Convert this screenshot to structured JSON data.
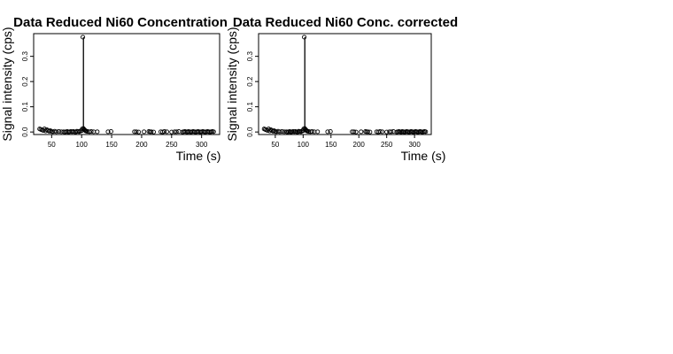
{
  "chart_data": [
    {
      "type": "scatter",
      "title": "Data Reduced Ni60 Concentration",
      "xlabel": "Time (s)",
      "ylabel": "Signal intensity (cps)",
      "xlim": [
        20,
        330
      ],
      "ylim": [
        -0.01,
        0.39
      ],
      "xticks": [
        50,
        100,
        150,
        200,
        250,
        300
      ],
      "yticks": [
        0.0,
        0.1,
        0.2,
        0.3
      ],
      "ytick_labels": [
        "0.0",
        "0.1",
        "0.2",
        "0.3"
      ],
      "grid": false,
      "x": [
        30,
        32,
        34,
        36,
        38,
        40,
        42,
        44,
        46,
        48,
        50,
        52,
        55,
        58,
        62,
        66,
        70,
        72,
        74,
        76,
        78,
        80,
        82,
        84,
        86,
        88,
        90,
        92,
        94,
        96,
        98,
        100,
        101,
        102,
        103,
        104,
        105,
        106,
        107,
        108,
        110,
        113,
        116,
        120,
        126,
        144,
        149,
        188,
        191,
        195,
        204,
        212,
        214,
        216,
        220,
        232,
        235,
        238,
        242,
        250,
        255,
        258,
        262,
        268,
        270,
        272,
        274,
        276,
        278,
        280,
        282,
        284,
        286,
        288,
        290,
        292,
        294,
        296,
        298,
        300,
        302,
        304,
        306,
        308,
        310,
        312,
        314,
        316,
        318,
        320
      ],
      "y": [
        0.012,
        0.01,
        0.008,
        0.006,
        0.012,
        0.004,
        0.009,
        0.006,
        0.003,
        0.005,
        0.002,
        0.001,
        0.003,
        0.001,
        0.002,
        0.001,
        0.001,
        0.0,
        0.001,
        0.002,
        0.0,
        0.001,
        0.002,
        0.001,
        0.002,
        0.001,
        0.0,
        0.003,
        0.002,
        0.001,
        0.004,
        0.005,
        0.012,
        0.376,
        0.014,
        0.01,
        0.008,
        0.006,
        0.004,
        0.003,
        0.002,
        0.001,
        0.002,
        0.001,
        0.001,
        0.001,
        0.002,
        0.001,
        0.001,
        0.0,
        0.001,
        0.002,
        0.001,
        0.001,
        0.0,
        0.001,
        0.0,
        0.002,
        0.001,
        0.0,
        0.001,
        0.001,
        0.002,
        0.0,
        0.001,
        0.002,
        0.001,
        0.0,
        0.002,
        0.001,
        0.0,
        0.001,
        0.002,
        0.001,
        0.0,
        0.001,
        0.002,
        0.001,
        0.0,
        0.001,
        0.002,
        0.001,
        0.0,
        0.001,
        0.002,
        0.001,
        0.0,
        0.001,
        0.002,
        0.001
      ],
      "line_segments": [
        {
          "x": [
            103,
            103
          ],
          "y": [
            0.012,
            0.376
          ]
        }
      ]
    },
    {
      "type": "scatter",
      "title": "Data Reduced Ni60 Conc. corrected",
      "xlabel": "Time (s)",
      "ylabel": "Signal intensity (cps)",
      "xlim": [
        20,
        330
      ],
      "ylim": [
        -0.01,
        0.39
      ],
      "xticks": [
        50,
        100,
        150,
        200,
        250,
        300
      ],
      "yticks": [
        0.0,
        0.1,
        0.2,
        0.3
      ],
      "ytick_labels": [
        "0.0",
        "0.1",
        "0.2",
        "0.3"
      ],
      "grid": false,
      "x": [
        30,
        32,
        34,
        36,
        38,
        40,
        42,
        44,
        46,
        48,
        50,
        52,
        55,
        58,
        62,
        66,
        70,
        72,
        74,
        76,
        78,
        80,
        82,
        84,
        86,
        88,
        90,
        92,
        94,
        96,
        98,
        100,
        101,
        102,
        103,
        104,
        105,
        106,
        107,
        108,
        110,
        113,
        116,
        120,
        126,
        144,
        149,
        188,
        191,
        195,
        204,
        212,
        214,
        216,
        220,
        232,
        235,
        238,
        242,
        250,
        255,
        258,
        262,
        268,
        270,
        272,
        274,
        276,
        278,
        280,
        282,
        284,
        286,
        288,
        290,
        292,
        294,
        296,
        298,
        300,
        302,
        304,
        306,
        308,
        310,
        312,
        314,
        316,
        318,
        320
      ],
      "y": [
        0.012,
        0.01,
        0.008,
        0.006,
        0.012,
        0.004,
        0.009,
        0.006,
        0.003,
        0.005,
        0.002,
        0.001,
        0.003,
        0.001,
        0.002,
        0.001,
        0.001,
        0.0,
        0.001,
        0.002,
        0.0,
        0.001,
        0.002,
        0.001,
        0.002,
        0.001,
        0.0,
        0.003,
        0.002,
        0.001,
        0.004,
        0.005,
        0.012,
        0.376,
        0.014,
        0.01,
        0.008,
        0.006,
        0.004,
        0.003,
        0.002,
        0.001,
        0.002,
        0.001,
        0.001,
        0.001,
        0.002,
        0.001,
        0.001,
        0.0,
        0.001,
        0.002,
        0.001,
        0.001,
        0.0,
        0.001,
        0.0,
        0.002,
        0.001,
        0.0,
        0.001,
        0.001,
        0.002,
        0.0,
        0.001,
        0.002,
        0.001,
        0.0,
        0.002,
        0.001,
        0.0,
        0.001,
        0.002,
        0.001,
        0.0,
        0.001,
        0.002,
        0.001,
        0.0,
        0.001,
        0.002,
        0.001,
        0.0,
        0.001,
        0.002,
        0.001,
        0.0,
        0.001,
        0.002,
        0.001
      ],
      "line_segments": [
        {
          "x": [
            103,
            103
          ],
          "y": [
            0.012,
            0.376
          ]
        }
      ]
    }
  ]
}
